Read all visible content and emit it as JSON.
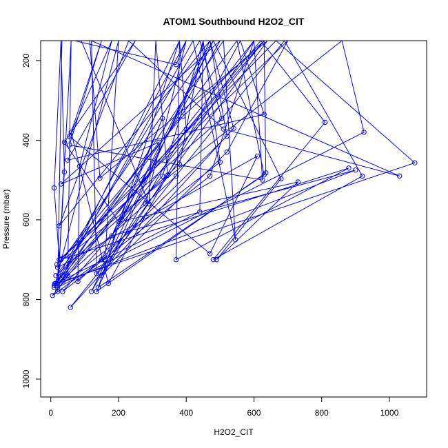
{
  "chart_data": {
    "type": "scatter",
    "title": "ATOM1 Southbound H2O2_CIT",
    "xlabel": "H2O2_CIT",
    "ylabel": "Pressure (mbar)",
    "xlim": [
      -30,
      1110
    ],
    "ylim": [
      1045,
      150
    ],
    "y_reversed": true,
    "x_ticks": [
      0,
      200,
      400,
      600,
      800,
      1000
    ],
    "y_ticks": [
      200,
      400,
      600,
      800,
      1000
    ],
    "grid": false,
    "legend": "none",
    "color": "#0000ff",
    "series": [
      {
        "values": [
          [
            33,
            150
          ],
          [
            20,
            780
          ],
          [
            40,
            480
          ],
          [
            30,
            150
          ],
          [
            10,
            520
          ],
          [
            25,
            700
          ],
          [
            60,
            150
          ],
          [
            50,
            740
          ],
          [
            12,
            760
          ],
          [
            400,
            150
          ],
          [
            280,
            560
          ],
          [
            370,
            490
          ],
          [
            10,
            770
          ],
          [
            200,
            150
          ],
          [
            160,
            700
          ],
          [
            330,
            345
          ],
          [
            150,
            700
          ],
          [
            5,
            790
          ],
          [
            600,
            150
          ],
          [
            470,
            490
          ],
          [
            35,
            780
          ],
          [
            330,
            490
          ],
          [
            450,
            150
          ],
          [
            380,
            460
          ],
          [
            15,
            740
          ],
          [
            320,
            405
          ],
          [
            30,
            510
          ],
          [
            500,
            150
          ],
          [
            180,
            640
          ],
          [
            900,
            475
          ],
          [
            10,
            765
          ],
          [
            550,
            150
          ],
          [
            630,
            487
          ],
          [
            140,
            770
          ],
          [
            380,
            150
          ],
          [
            400,
            372
          ],
          [
            120,
            780
          ],
          [
            480,
            150
          ],
          [
            210,
            600
          ],
          [
            630,
            150
          ],
          [
            390,
            340
          ],
          [
            18,
            712
          ],
          [
            860,
            150
          ],
          [
            925,
            380
          ],
          [
            20,
            770
          ],
          [
            500,
            455
          ],
          [
            450,
            150
          ],
          [
            440,
            580
          ],
          [
            15,
            760
          ],
          [
            630,
            150
          ],
          [
            635,
            482
          ],
          [
            135,
            780
          ],
          [
            470,
            150
          ],
          [
            540,
            370
          ],
          [
            58,
            820
          ],
          [
            690,
            150
          ],
          [
            920,
            490
          ],
          [
            480,
            700
          ],
          [
            810,
            355
          ],
          [
            620,
            150
          ],
          [
            20,
            765
          ],
          [
            510,
            150
          ],
          [
            545,
            650
          ],
          [
            420,
            150
          ],
          [
            35,
            740
          ],
          [
            380,
            150
          ],
          [
            370,
            700
          ],
          [
            880,
            470
          ],
          [
            30,
            700
          ],
          [
            665,
            150
          ],
          [
            1075,
            457
          ],
          [
            15,
            760
          ],
          [
            440,
            150
          ],
          [
            505,
            345
          ],
          [
            30,
            697
          ],
          [
            700,
            150
          ],
          [
            520,
            430
          ],
          [
            150,
            740
          ],
          [
            600,
            150
          ],
          [
            625,
            500
          ],
          [
            55,
            412
          ],
          [
            150,
            150
          ],
          [
            60,
            380
          ],
          [
            170,
            760
          ],
          [
            560,
            150
          ],
          [
            630,
            335
          ],
          [
            50,
            450
          ],
          [
            250,
            150
          ],
          [
            40,
            405
          ],
          [
            200,
            605
          ],
          [
            730,
            505
          ],
          [
            490,
            700
          ],
          [
            680,
            497
          ],
          [
            480,
            150
          ],
          [
            20,
            720
          ],
          [
            610,
            440
          ],
          [
            470,
            685
          ],
          [
            55,
            390
          ],
          [
            180,
            150
          ],
          [
            85,
            465
          ],
          [
            80,
            755
          ],
          [
            520,
            390
          ],
          [
            470,
            150
          ],
          [
            25,
            615
          ],
          [
            230,
            150
          ],
          [
            510,
            372
          ],
          [
            1030,
            490
          ],
          [
            120,
            150
          ],
          [
            135,
            735
          ],
          [
            640,
            150
          ],
          [
            145,
            495
          ],
          [
            115,
            150
          ],
          [
            400,
            150
          ],
          [
            370,
            210
          ],
          [
            70,
            150
          ],
          [
            90,
            150
          ],
          [
            290,
            560
          ],
          [
            310,
            150
          ],
          [
            345,
            488
          ]
        ]
      }
    ]
  }
}
